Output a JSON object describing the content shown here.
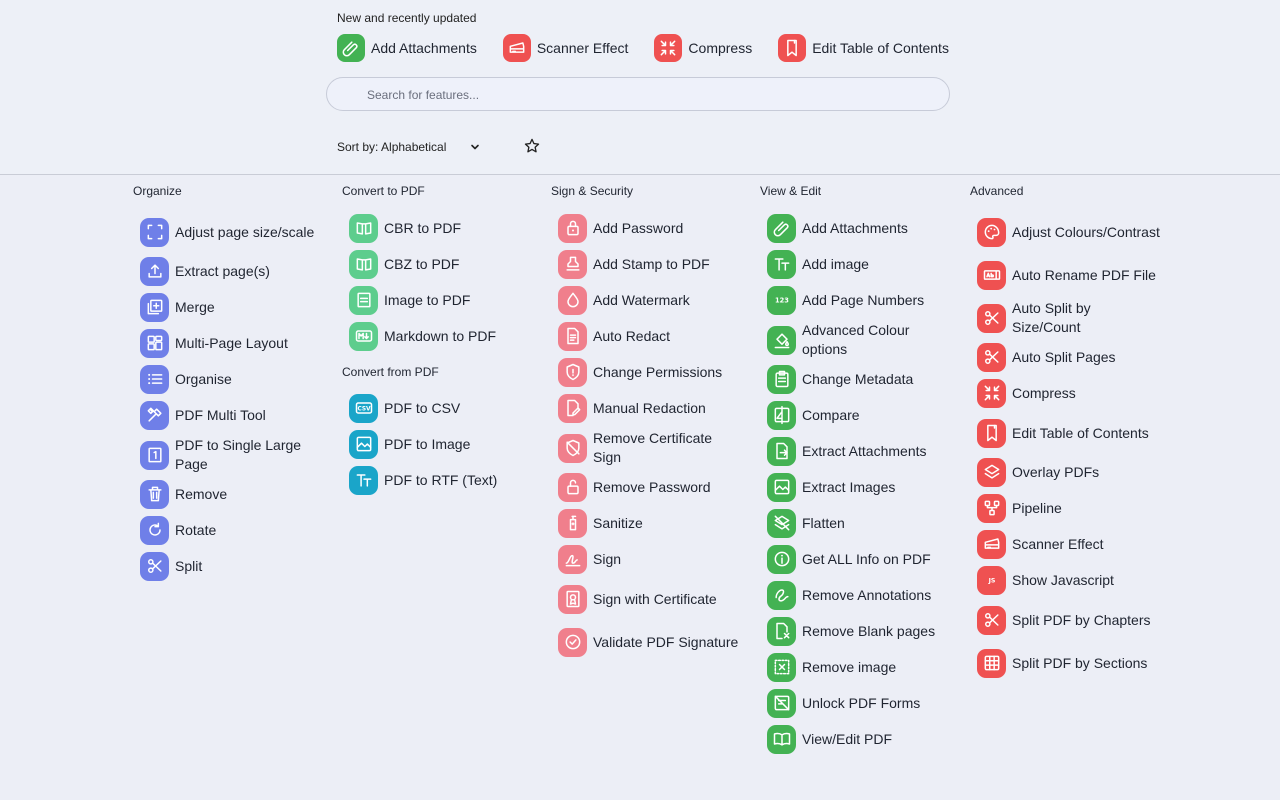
{
  "colors": {
    "organize": "#6f7fe8",
    "convert_to": "#5dcd8d",
    "convert_from": "#1aa5c9",
    "sign": "#f07f8c",
    "view": "#43b253",
    "advanced": "#ef5151"
  },
  "recent": {
    "title": "New and recently updated",
    "items": [
      {
        "label": "Add Attachments",
        "icon": "paperclip-icon",
        "color": "#43b253"
      },
      {
        "label": "Scanner Effect",
        "icon": "scanner-icon",
        "color": "#ef5151"
      },
      {
        "label": "Compress",
        "icon": "compress-icon",
        "color": "#ef5151"
      },
      {
        "label": "Edit Table of Contents",
        "icon": "bookmark-icon",
        "color": "#ef5151"
      }
    ]
  },
  "search": {
    "placeholder": "Search for features..."
  },
  "sort": {
    "label": "Sort by: Alphabetical"
  },
  "columns": [
    {
      "title": "Organize",
      "color": "#6f7fe8",
      "items": [
        {
          "label": "Adjust page size/scale",
          "icon": "fullscreen-icon"
        },
        {
          "label": "Extract page(s)",
          "icon": "upload-icon"
        },
        {
          "label": "Merge",
          "icon": "merge-icon"
        },
        {
          "label": "Multi-Page Layout",
          "icon": "grid-icon"
        },
        {
          "label": "Organise",
          "icon": "list-icon"
        },
        {
          "label": "PDF Multi Tool",
          "icon": "tools-icon"
        },
        {
          "label": "PDF to Single Large Page",
          "icon": "single-page-icon"
        },
        {
          "label": "Remove",
          "icon": "trash-icon"
        },
        {
          "label": "Rotate",
          "icon": "rotate-icon"
        },
        {
          "label": "Split",
          "icon": "scissors-icon"
        }
      ]
    },
    {
      "title": "Convert to PDF",
      "color": "#5dcd8d",
      "items": [
        {
          "label": "CBR to PDF",
          "icon": "comic-book-icon"
        },
        {
          "label": "CBZ to PDF",
          "icon": "comic-book-icon"
        },
        {
          "label": "Image to PDF",
          "icon": "pdf-image-icon"
        },
        {
          "label": "Markdown to PDF",
          "icon": "markdown-icon"
        }
      ],
      "sub_title": "Convert from PDF",
      "sub_color": "#1aa5c9",
      "sub_items": [
        {
          "label": "PDF to CSV",
          "icon": "csv-icon"
        },
        {
          "label": "PDF to Image",
          "icon": "image-icon"
        },
        {
          "label": "PDF to RTF (Text)",
          "icon": "text-icon"
        }
      ]
    },
    {
      "title": "Sign & Security",
      "color": "#f07f8c",
      "items": [
        {
          "label": "Add Password",
          "icon": "lock-icon"
        },
        {
          "label": "Add Stamp to PDF",
          "icon": "stamp-icon"
        },
        {
          "label": "Add Watermark",
          "icon": "water-drop-icon"
        },
        {
          "label": "Auto Redact",
          "icon": "redact-doc-icon"
        },
        {
          "label": "Change Permissions",
          "icon": "shield-icon"
        },
        {
          "label": "Manual Redaction",
          "icon": "edit-doc-icon"
        },
        {
          "label": "Remove Certificate Sign",
          "icon": "no-cert-icon"
        },
        {
          "label": "Remove Password",
          "icon": "unlock-icon"
        },
        {
          "label": "Sanitize",
          "icon": "sanitizer-icon"
        },
        {
          "label": "Sign",
          "icon": "signature-icon"
        },
        {
          "label": "Sign with Certificate",
          "icon": "certificate-icon"
        },
        {
          "label": "Validate PDF Signature",
          "icon": "verified-icon"
        }
      ]
    },
    {
      "title": "View & Edit",
      "color": "#43b253",
      "items": [
        {
          "label": "Add Attachments",
          "icon": "paperclip-icon"
        },
        {
          "label": "Add image",
          "icon": "text-icon"
        },
        {
          "label": "Add Page Numbers",
          "icon": "numbers-icon"
        },
        {
          "label": "Advanced Colour options",
          "icon": "paint-bucket-icon"
        },
        {
          "label": "Change Metadata",
          "icon": "clipboard-icon"
        },
        {
          "label": "Compare",
          "icon": "compare-icon"
        },
        {
          "label": "Extract Attachments",
          "icon": "file-export-icon"
        },
        {
          "label": "Extract Images",
          "icon": "image-icon"
        },
        {
          "label": "Flatten",
          "icon": "no-layers-icon"
        },
        {
          "label": "Get ALL Info on PDF",
          "icon": "info-icon"
        },
        {
          "label": "Remove Annotations",
          "icon": "ink-eraser-icon"
        },
        {
          "label": "Remove Blank pages",
          "icon": "remove-page-icon"
        },
        {
          "label": "Remove image",
          "icon": "remove-image-icon"
        },
        {
          "label": "Unlock PDF Forms",
          "icon": "no-form-icon"
        },
        {
          "label": "View/Edit PDF",
          "icon": "book-icon"
        }
      ]
    },
    {
      "title": "Advanced",
      "color": "#ef5151",
      "items": [
        {
          "label": "Adjust Colours/Contrast",
          "icon": "palette-icon"
        },
        {
          "label": "Auto Rename PDF File",
          "icon": "rename-icon"
        },
        {
          "label": "Auto Split by Size/Count",
          "icon": "scissors-icon"
        },
        {
          "label": "Auto Split Pages",
          "icon": "scissors-icon"
        },
        {
          "label": "Compress",
          "icon": "compress-icon"
        },
        {
          "label": "Edit Table of Contents",
          "icon": "bookmark-icon"
        },
        {
          "label": "Overlay PDFs",
          "icon": "layers-icon"
        },
        {
          "label": "Pipeline",
          "icon": "pipeline-icon"
        },
        {
          "label": "Scanner Effect",
          "icon": "scanner-icon"
        },
        {
          "label": "Show Javascript",
          "icon": "javascript-icon"
        },
        {
          "label": "Split PDF by Chapters",
          "icon": "scissors-icon"
        },
        {
          "label": "Split PDF by Sections",
          "icon": "table-grid-icon"
        }
      ]
    }
  ]
}
